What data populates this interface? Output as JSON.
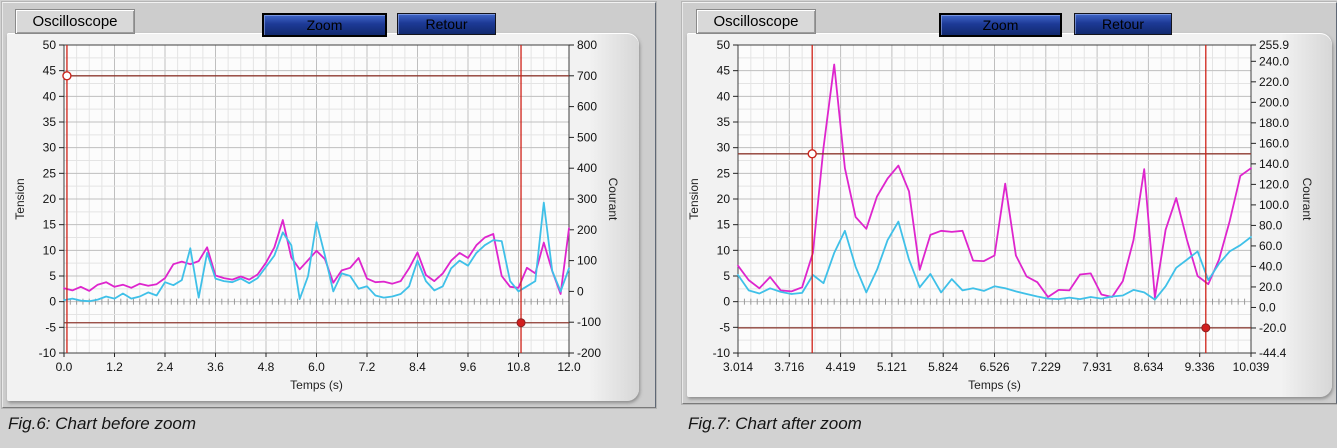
{
  "page": {
    "bg": "#d2d2d2"
  },
  "panels": [
    {
      "buttons": {
        "oscilloscope": "Oscilloscope",
        "zoom": "Zoom",
        "retour": "Retour"
      },
      "caption": "Fig.6: Chart before zoom"
    },
    {
      "buttons": {
        "oscilloscope": "Oscilloscope",
        "zoom": "Zoom",
        "retour": "Retour"
      },
      "caption": "Fig.7: Chart after zoom"
    }
  ],
  "chart_data": [
    {
      "type": "line",
      "title": "Oscilloscope (before zoom)",
      "xlabel": "Temps (s)",
      "ylabel_left": "Tension",
      "ylabel_right": "Courant",
      "x_range": [
        0,
        12
      ],
      "y_range": [
        -10,
        50
      ],
      "right_range": [
        -200,
        800
      ],
      "x_tick_labels": [
        "0.0",
        "1.2",
        "2.4",
        "3.6",
        "4.8",
        "6.0",
        "7.2",
        "8.4",
        "9.6",
        "10.8",
        "12.0"
      ],
      "y_tick_labels": [
        "50",
        "45",
        "40",
        "35",
        "30",
        "25",
        "20",
        "15",
        "10",
        "5",
        "0",
        "-5",
        "-10"
      ],
      "right_ticks": [
        {
          "v": 800,
          "label": "800"
        },
        {
          "v": 700,
          "label": "700"
        },
        {
          "v": 600,
          "label": "600"
        },
        {
          "v": 500,
          "label": "500"
        },
        {
          "v": 400,
          "label": "400"
        },
        {
          "v": 300,
          "label": "300"
        },
        {
          "v": 200,
          "label": "200"
        },
        {
          "v": 100,
          "label": "100"
        },
        {
          "v": 0,
          "label": "0"
        },
        {
          "v": -100,
          "label": "-100"
        },
        {
          "v": -200,
          "label": "-200"
        }
      ],
      "grid": {
        "x_divs": 40,
        "x_major_every": 4,
        "y_divs": 24,
        "y_major_every": 2
      },
      "right_label_w": 40,
      "x": [
        0.0,
        0.2,
        0.4,
        0.6,
        0.8,
        1.0,
        1.2,
        1.4,
        1.6,
        1.8,
        2.0,
        2.2,
        2.4,
        2.6,
        2.8,
        3.0,
        3.2,
        3.4,
        3.6,
        3.8,
        4.0,
        4.2,
        4.4,
        4.6,
        4.8,
        5.0,
        5.2,
        5.4,
        5.6,
        5.8,
        6.0,
        6.2,
        6.4,
        6.6,
        6.8,
        7.0,
        7.2,
        7.4,
        7.6,
        7.8,
        8.0,
        8.2,
        8.4,
        8.6,
        8.8,
        9.0,
        9.2,
        9.4,
        9.6,
        9.8,
        10.0,
        10.2,
        10.4,
        10.6,
        10.8,
        11.0,
        11.2,
        11.4,
        11.6,
        11.8,
        12.0
      ],
      "series": [
        {
          "name": "tension",
          "color": "#de25cd",
          "values": [
            2.6,
            2.2,
            2.9,
            2.1,
            3.3,
            3.8,
            2.9,
            3.3,
            2.7,
            3.5,
            3.1,
            3.4,
            4.6,
            7.3,
            7.8,
            7.3,
            7.9,
            10.6,
            5.1,
            4.6,
            4.3,
            4.9,
            4.3,
            5.3,
            7.6,
            10.6,
            15.9,
            8.6,
            6.3,
            8.1,
            9.9,
            8.3,
            3.7,
            6.1,
            6.6,
            8.5,
            4.5,
            3.8,
            3.9,
            3.5,
            4.0,
            6.5,
            9.6,
            5.2,
            4.0,
            5.5,
            8.0,
            9.5,
            8.5,
            11.0,
            12.5,
            13.2,
            5.0,
            2.9,
            2.7,
            6.6,
            5.5,
            11.5,
            6.0,
            1.5,
            14.3
          ]
        },
        {
          "name": "courant",
          "color": "#3fc0e8",
          "values": [
            0.3,
            0.6,
            0.2,
            0.1,
            0.4,
            1.0,
            0.6,
            1.6,
            0.6,
            1.0,
            1.8,
            1.2,
            3.8,
            3.2,
            4.2,
            10.4,
            0.8,
            9.5,
            4.5,
            4.0,
            3.8,
            4.5,
            3.6,
            4.6,
            6.8,
            9.0,
            13.5,
            11.0,
            0.5,
            5.0,
            15.5,
            9.0,
            2.0,
            5.5,
            5.0,
            2.5,
            3.0,
            1.2,
            0.8,
            1.0,
            1.5,
            3.0,
            8.0,
            4.0,
            2.2,
            3.0,
            6.5,
            8.0,
            7.0,
            9.5,
            11.0,
            12.0,
            11.8,
            4.0,
            2.0,
            3.0,
            4.0,
            19.3,
            6.0,
            2.0,
            6.5
          ]
        }
      ],
      "cursors": [
        {
          "t": 0.07,
          "y": 44.0,
          "marker": "open"
        },
        {
          "t": 10.86,
          "y": -4.1,
          "marker": "dot"
        }
      ],
      "colors": {
        "plot_bg": "#fcfcfc",
        "grid_minor": "#e4e4e4",
        "grid_major": "#bfbfbf",
        "frame": "#3f3f3f",
        "cursor_v": "#cf2218",
        "cursor_h": "#8e3a30",
        "zero_ticks": "#9a9a9a"
      }
    },
    {
      "type": "line",
      "title": "Oscilloscope (after zoom)",
      "xlabel": "Temps (s)",
      "ylabel_left": "Tension",
      "ylabel_right": "Courant",
      "x_range": [
        3.014,
        10.039
      ],
      "y_range": [
        -10,
        50
      ],
      "right_range": [
        -44.4,
        255.9
      ],
      "x_tick_labels": [
        "3.014",
        "3.716",
        "4.419",
        "5.121",
        "5.824",
        "6.526",
        "7.229",
        "7.931",
        "8.634",
        "9.336",
        "10.039"
      ],
      "y_tick_labels": [
        "50",
        "45",
        "40",
        "35",
        "30",
        "25",
        "20",
        "15",
        "10",
        "5",
        "0",
        "-5",
        "-10"
      ],
      "right_ticks": [
        {
          "v": 255.9,
          "label": "255.9"
        },
        {
          "v": 240,
          "label": "240.0"
        },
        {
          "v": 220,
          "label": "220.0"
        },
        {
          "v": 200,
          "label": "200.0"
        },
        {
          "v": 180,
          "label": "180.0"
        },
        {
          "v": 160,
          "label": "160.0"
        },
        {
          "v": 140,
          "label": "140.0"
        },
        {
          "v": 120,
          "label": "120.0"
        },
        {
          "v": 100,
          "label": "100.0"
        },
        {
          "v": 80,
          "label": "80.0"
        },
        {
          "v": 60,
          "label": "60.0"
        },
        {
          "v": 40,
          "label": "40.0"
        },
        {
          "v": 20,
          "label": "20.0"
        },
        {
          "v": 0,
          "label": "0.0"
        },
        {
          "v": -20,
          "label": "-20.0"
        },
        {
          "v": -44.4,
          "label": "-44.4"
        }
      ],
      "grid": {
        "x_divs": 40,
        "x_major_every": 4,
        "y_divs": 24,
        "y_major_every": 2
      },
      "right_label_w": 52,
      "x": [
        3.014,
        3.16,
        3.307,
        3.453,
        3.6,
        3.746,
        3.892,
        4.039,
        4.185,
        4.331,
        4.478,
        4.624,
        4.771,
        4.917,
        5.063,
        5.21,
        5.356,
        5.502,
        5.649,
        5.795,
        5.942,
        6.088,
        6.234,
        6.381,
        6.527,
        6.673,
        6.82,
        6.966,
        7.113,
        7.259,
        7.405,
        7.552,
        7.698,
        7.844,
        7.991,
        8.137,
        8.284,
        8.43,
        8.576,
        8.723,
        8.869,
        9.015,
        9.162,
        9.308,
        9.454,
        9.601,
        9.747,
        9.893,
        10.039
      ],
      "series": [
        {
          "name": "tension",
          "color": "#de25cd",
          "values": [
            7.0,
            4.2,
            2.6,
            4.8,
            2.2,
            2.0,
            2.8,
            9.5,
            30.0,
            46.2,
            26.0,
            16.5,
            14.2,
            20.5,
            24.0,
            26.5,
            21.5,
            6.2,
            13.0,
            13.8,
            13.6,
            13.8,
            8.0,
            7.9,
            9.0,
            23.0,
            9.0,
            4.9,
            3.8,
            0.9,
            2.3,
            2.2,
            5.3,
            5.5,
            1.4,
            0.9,
            4.0,
            12.0,
            25.8,
            0.8,
            14.0,
            20.2,
            12.0,
            5.0,
            3.4,
            8.2,
            15.7,
            24.5,
            26.0
          ]
        },
        {
          "name": "courant",
          "color": "#3fc0e8",
          "values": [
            5.2,
            2.2,
            1.6,
            2.6,
            1.9,
            1.5,
            1.7,
            5.2,
            3.6,
            9.5,
            13.8,
            6.8,
            1.8,
            6.2,
            12.0,
            15.6,
            8.2,
            2.8,
            5.4,
            1.8,
            4.4,
            2.2,
            2.6,
            2.1,
            3.0,
            2.6,
            2.0,
            1.5,
            1.0,
            0.6,
            0.5,
            0.8,
            0.5,
            0.9,
            0.6,
            1.0,
            1.2,
            2.3,
            1.8,
            0.4,
            3.0,
            6.6,
            8.2,
            9.8,
            4.2,
            7.4,
            9.8,
            11.0,
            12.6
          ]
        }
      ],
      "cursors": [
        {
          "t": 4.03,
          "y": 28.8,
          "marker": "open"
        },
        {
          "t": 9.42,
          "y": -5.1,
          "marker": "dot"
        }
      ],
      "colors": {
        "plot_bg": "#fcfcfc",
        "grid_minor": "#e4e4e4",
        "grid_major": "#bfbfbf",
        "frame": "#3f3f3f",
        "cursor_v": "#cf2218",
        "cursor_h": "#8e3a30",
        "zero_ticks": "#9a9a9a"
      }
    }
  ]
}
